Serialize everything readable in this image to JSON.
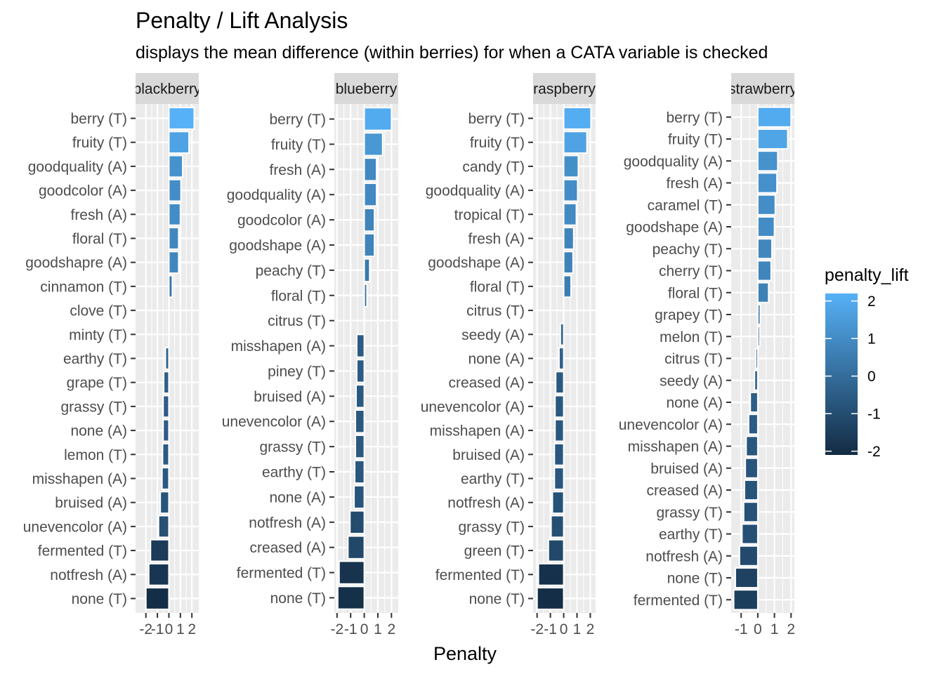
{
  "chart_data": {
    "type": "bar",
    "title": "Penalty / Lift Analysis",
    "subtitle": "displays the mean difference (within berries) for when a CATA variable is checked",
    "xlabel": "Penalty",
    "ylabel": "",
    "grid": true,
    "legend": {
      "title": "penalty_lift",
      "position": "right",
      "ticks": [
        2,
        1,
        0,
        -1,
        -2
      ],
      "range": [
        -2.1,
        2.2
      ],
      "color_low": "#132B43",
      "color_high": "#56B1F7"
    },
    "panels": [
      {
        "strip": "blackberry",
        "xlim": [
          -2.9,
          2.6
        ],
        "xticks": [
          -2,
          -1,
          0,
          1,
          2
        ],
        "tick_labels": [
          "-2",
          "-1",
          "0",
          "1",
          "2"
        ],
        "categories": [
          "berry (T)",
          "fruity (T)",
          "goodquality (A)",
          "goodcolor (A)",
          "fresh (A)",
          "floral (T)",
          "goodshapre (A)",
          "cinnamon (T)",
          "clove (T)",
          "minty (T)",
          "earthy (T)",
          "grape (T)",
          "grassy (T)",
          "none (A)",
          "lemon (T)",
          "misshapen (A)",
          "bruised (A)",
          "unevencolor (A)",
          "fermented (T)",
          "notfresh (A)",
          "none (T)"
        ],
        "values": [
          2.2,
          1.75,
          1.2,
          1.05,
          1.0,
          0.85,
          0.85,
          0.3,
          0,
          0,
          -0.3,
          -0.45,
          -0.5,
          -0.5,
          -0.55,
          -0.6,
          -0.75,
          -0.9,
          -1.6,
          -1.75,
          -2.0
        ]
      },
      {
        "strip": "blueberry",
        "xlim": [
          -2.2,
          2.5
        ],
        "xticks": [
          -2,
          -1,
          0,
          1,
          2
        ],
        "tick_labels": [
          "-2",
          "-1",
          "0",
          "1",
          "2"
        ],
        "categories": [
          "berry (T)",
          "fruity (T)",
          "fresh (A)",
          "goodquality (A)",
          "goodcolor (A)",
          "goodshape (A)",
          "peachy (T)",
          "floral (T)",
          "citrus (T)",
          "misshapen (A)",
          "piney (T)",
          "bruised (A)",
          "unevencolor (A)",
          "grassy (T)",
          "earthy (T)",
          "none (A)",
          "notfresh (A)",
          "creased (A)",
          "fermented (T)",
          "none (T)"
        ],
        "values": [
          2.0,
          1.35,
          0.9,
          0.9,
          0.75,
          0.75,
          0.4,
          0.2,
          0,
          -0.55,
          -0.55,
          -0.6,
          -0.65,
          -0.65,
          -0.7,
          -0.75,
          -1.05,
          -1.2,
          -1.85,
          -1.95
        ]
      },
      {
        "strip": "raspberry",
        "xlim": [
          -2.3,
          2.4
        ],
        "xticks": [
          -2,
          -1,
          0,
          1,
          2
        ],
        "tick_labels": [
          "-2",
          "-1",
          "0",
          "1",
          "2"
        ],
        "categories": [
          "berry (T)",
          "fruity (T)",
          "candy (T)",
          "goodquality (A)",
          "tropical (T)",
          "fresh (A)",
          "goodshape (A)",
          "floral (T)",
          "citrus (T)",
          "seedy (A)",
          "none (A)",
          "creased (A)",
          "unevencolor (A)",
          "misshapen (A)",
          "bruised (A)",
          "earthy (T)",
          "notfresh (A)",
          "grassy (T)",
          "green (T)",
          "fermented (T)",
          "none (T)"
        ],
        "values": [
          2.05,
          1.75,
          1.1,
          1.05,
          0.95,
          0.75,
          0.7,
          0.55,
          0,
          -0.25,
          -0.35,
          -0.6,
          -0.65,
          -0.65,
          -0.7,
          -0.7,
          -0.85,
          -0.95,
          -1.15,
          -1.9,
          -2.0
        ]
      },
      {
        "strip": "strawberry",
        "xlim": [
          -1.6,
          2.2
        ],
        "xticks": [
          -1,
          0,
          1,
          2
        ],
        "tick_labels": [
          "-1",
          "0",
          "1",
          "2"
        ],
        "categories": [
          "berry (T)",
          "fruity (T)",
          "goodquality (A)",
          "fresh (A)",
          "caramel (T)",
          "goodshape (A)",
          "peachy (T)",
          "cherry (T)",
          "floral (T)",
          "grapey (T)",
          "melon (T)",
          "citrus (T)",
          "seedy (A)",
          "none (A)",
          "unevencolor (A)",
          "misshapen (A)",
          "bruised (A)",
          "creased (A)",
          "grassy (T)",
          "earthy (T)",
          "notfresh (A)",
          "none (T)",
          "fermented (T)"
        ],
        "values": [
          2.0,
          1.8,
          1.2,
          1.15,
          1.05,
          1.0,
          0.85,
          0.8,
          0.65,
          0.15,
          0.12,
          -0.12,
          -0.2,
          -0.45,
          -0.55,
          -0.7,
          -0.75,
          -0.8,
          -0.85,
          -0.95,
          -1.1,
          -1.35,
          -1.45
        ]
      }
    ]
  }
}
